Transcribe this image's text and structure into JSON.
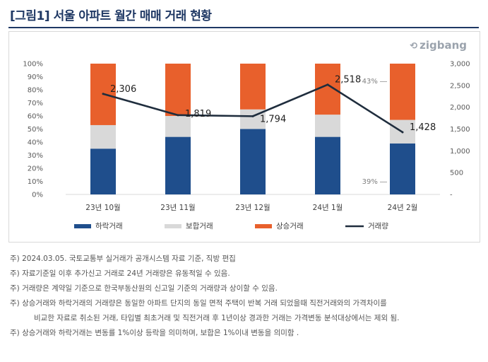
{
  "header": {
    "title": "[그림1] 서울 아파트 월간 매매 거래 현황"
  },
  "brand": {
    "name": "zigbang",
    "icon": "zigbang-logo-icon"
  },
  "chart_data": {
    "type": "bar",
    "stacked": true,
    "categories": [
      "23년 10월",
      "23년 11월",
      "23년 12월",
      "24년 1월",
      "24년 2월"
    ],
    "series": [
      {
        "name": "하락거래",
        "color": "#1f4e8c",
        "values": [
          35,
          44,
          50,
          44,
          39
        ]
      },
      {
        "name": "보합거래",
        "color": "#d9d9d9",
        "values": [
          18,
          16,
          15,
          17,
          18
        ]
      },
      {
        "name": "상승거래",
        "color": "#e8602c",
        "values": [
          47,
          40,
          35,
          39,
          43
        ]
      }
    ],
    "line": {
      "name": "거래량",
      "color": "#1f2d3d",
      "values": [
        2306,
        1819,
        1794,
        2518,
        1428
      ],
      "labels": [
        "2,306",
        "1,819",
        "1,794",
        "2,518",
        "1,428"
      ]
    },
    "y_left": {
      "ylim": [
        0,
        100
      ],
      "ticks": [
        "0%",
        "10%",
        "20%",
        "30%",
        "40%",
        "50%",
        "60%",
        "70%",
        "80%",
        "90%",
        "100%"
      ]
    },
    "y_right": {
      "ylim": [
        0,
        3000
      ],
      "ticks": [
        "-",
        "500",
        "1,000",
        "1,500",
        "2,000",
        "2,500",
        "3,000"
      ]
    },
    "annotations": [
      {
        "text": "43%",
        "category": "24년 2월",
        "series": "상승거래"
      },
      {
        "text": "39%",
        "category": "24년 2월",
        "series": "하락거래"
      }
    ],
    "legend": {
      "position": "bottom"
    },
    "grid": false
  },
  "notes": [
    "주) 2024.03.05. 국토교통부 실거래가 공개시스템 자료 기준, 직방 편집",
    "주) 자료기준일 이후 추가신고 거래로 24년 거래량은 유동적일 수 있음.",
    "주) 거래량은 계약일 기준으로 한국부동산원의 신고일 기준의 거래량과 상이할 수 있음.",
    "주) 상승거래와 하락거래의 거래량은 동일한 아파트 단지의 동일 면적 주택이 반복 거래 되었을때 직전거래와의 가격차이를",
    "비교한 자료로 취소된 거래, 타입별 최초거래 및 직전거래 후 1년이상 경과한 거래는 가격변동 분석대상에서는 제외 됨.",
    "주) 상승거래와 하락거래는 변동률 1%이상 등락을 의미하며, 보합은 1%이내 변동을 의미함 ."
  ]
}
